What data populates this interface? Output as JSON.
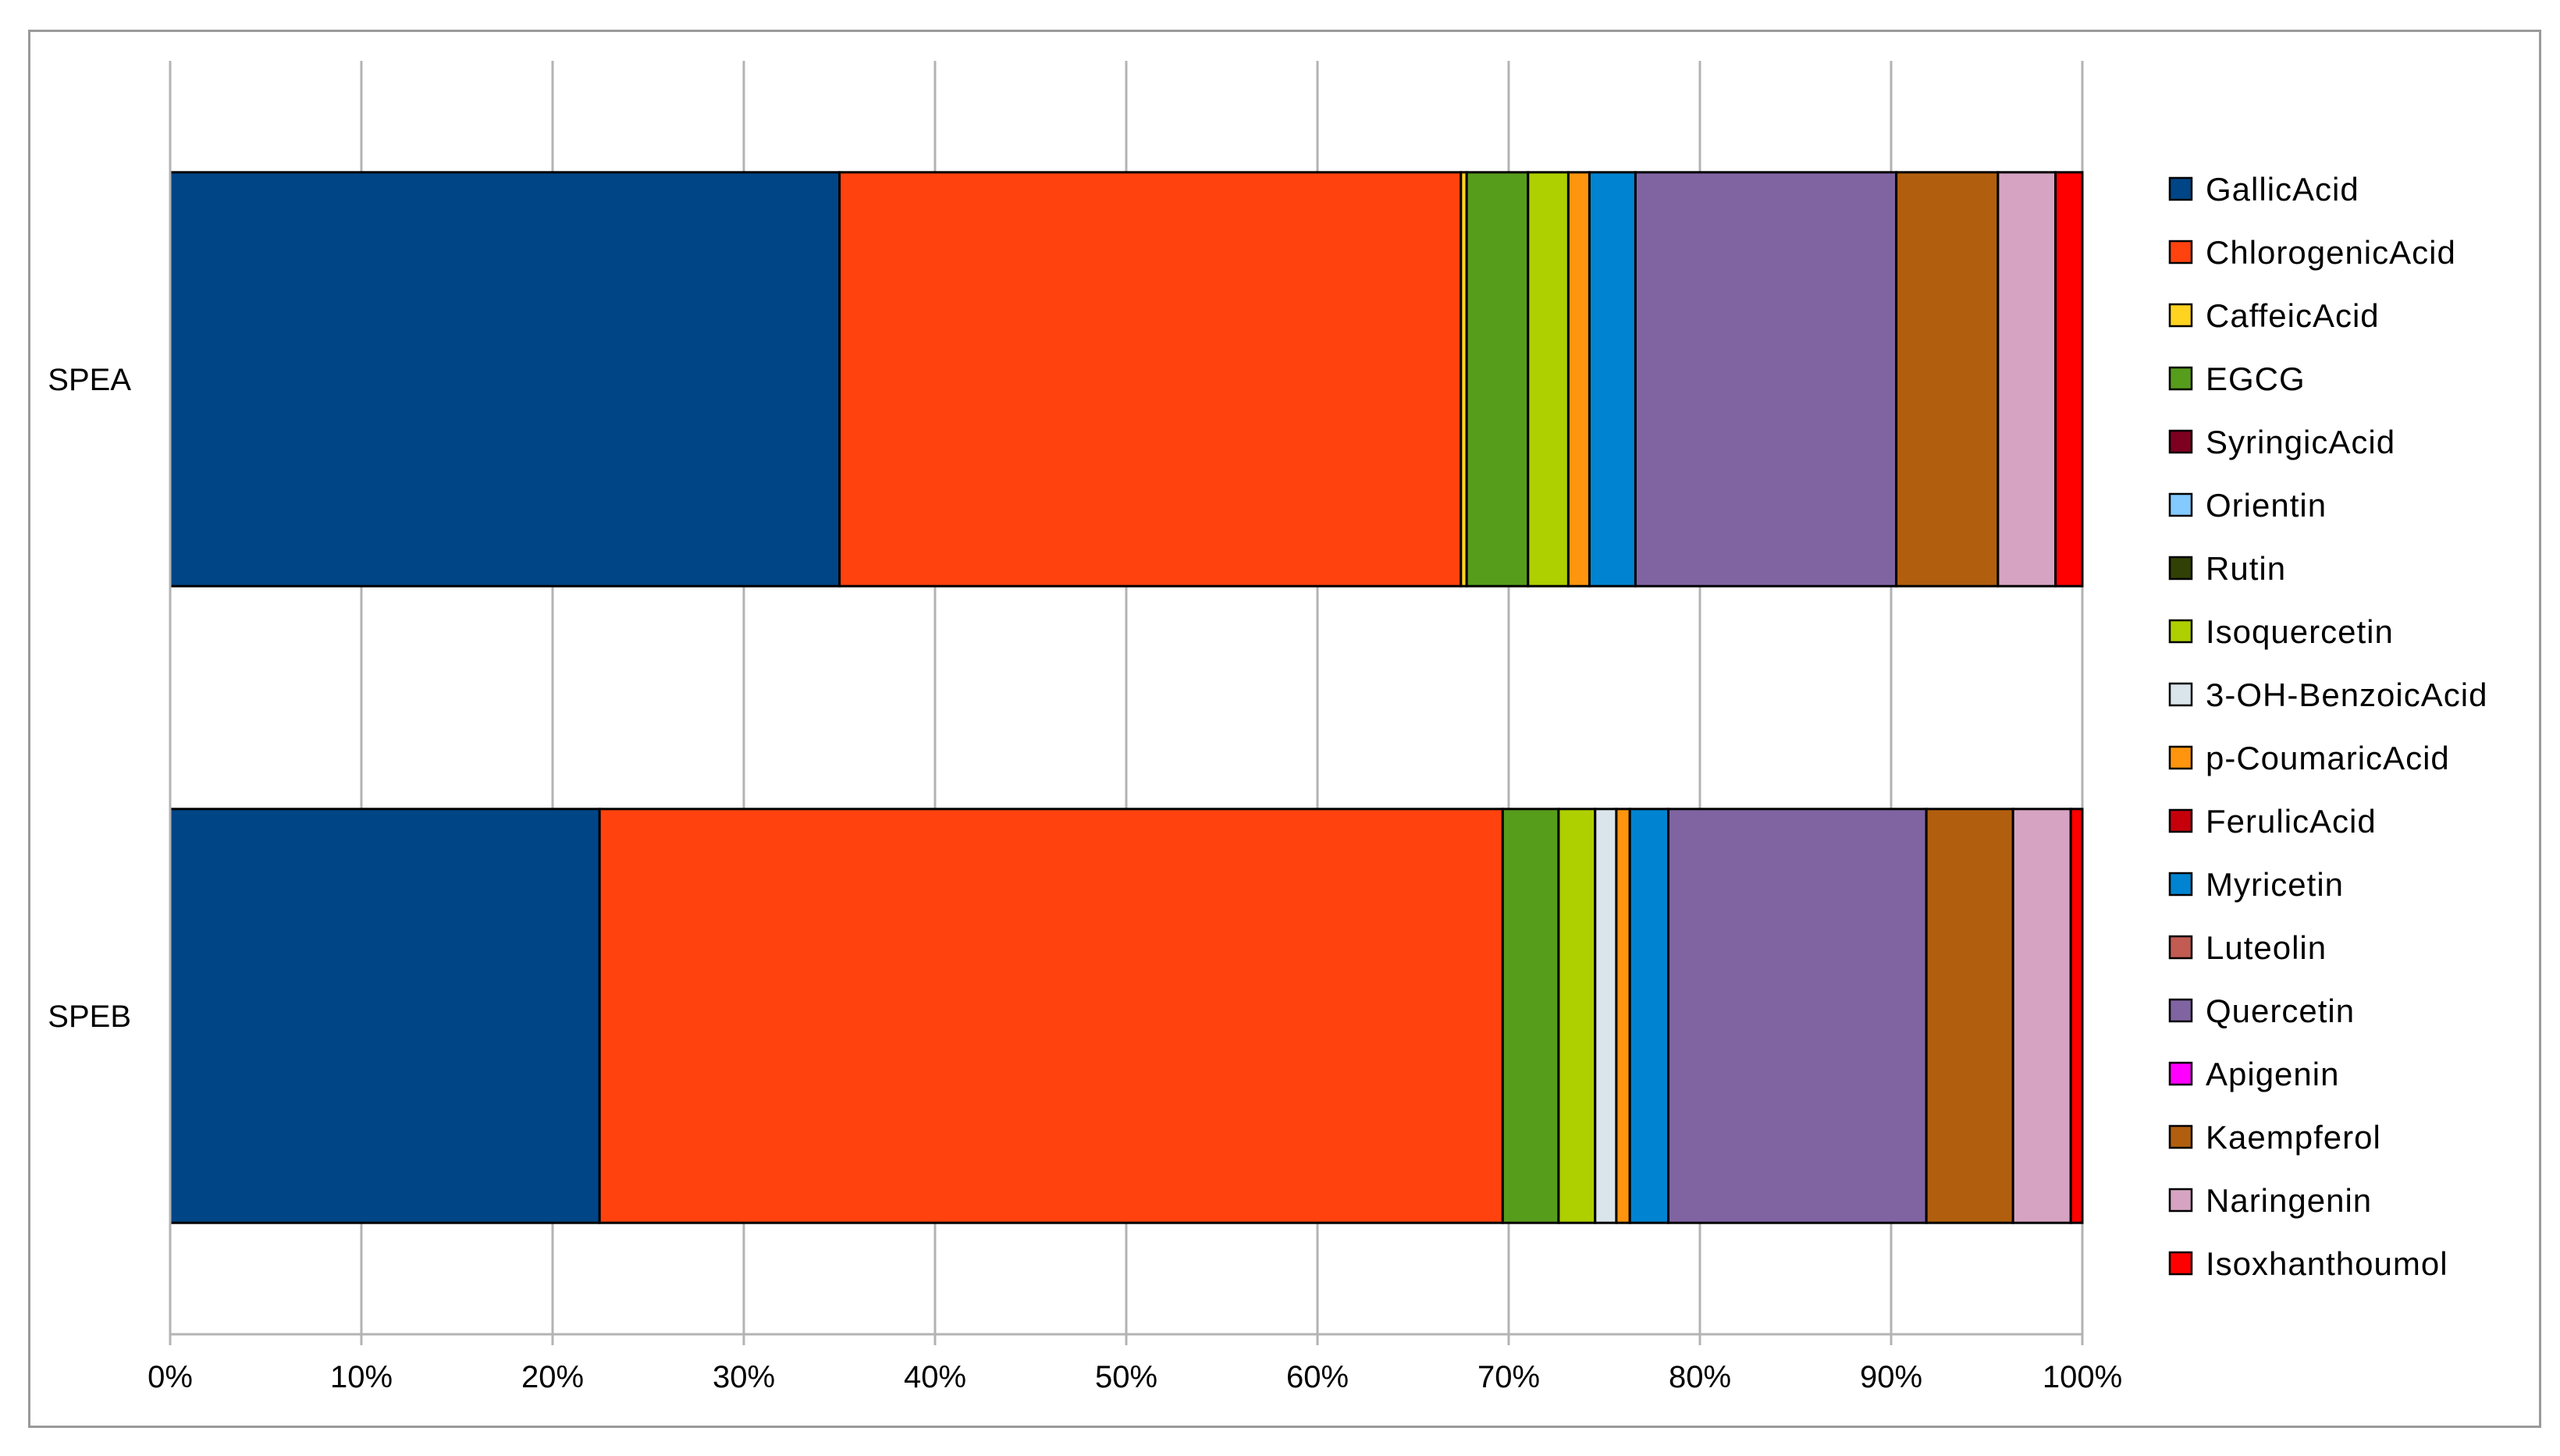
{
  "chart_data": {
    "type": "bar",
    "orientation": "horizontal",
    "stacked": "percent",
    "categories": [
      "SPEA",
      "SPEB"
    ],
    "xlim": [
      0,
      100
    ],
    "xticks": [
      "0%",
      "10%",
      "20%",
      "30%",
      "40%",
      "50%",
      "60%",
      "70%",
      "80%",
      "90%",
      "100%"
    ],
    "grid": true,
    "legend_position": "right",
    "series": [
      {
        "name": "GallicAcid",
        "color": "#004586",
        "values": [
          34.9,
          22.3
        ]
      },
      {
        "name": "ChlorogenicAcid",
        "color": "#ff420e",
        "values": [
          32.4,
          46.9
        ]
      },
      {
        "name": "CaffeicAcid",
        "color": "#ffd320",
        "values": [
          0.3,
          0.0
        ]
      },
      {
        "name": "EGCG",
        "color": "#579d1c",
        "values": [
          3.2,
          2.9
        ]
      },
      {
        "name": "SyringicAcid",
        "color": "#7e0021",
        "values": [
          0.0,
          0.0
        ]
      },
      {
        "name": "Orientin",
        "color": "#83caff",
        "values": [
          0.0,
          0.0
        ]
      },
      {
        "name": "Rutin",
        "color": "#314004",
        "values": [
          0.0,
          0.0
        ]
      },
      {
        "name": "Isoquercetin",
        "color": "#aecf00",
        "values": [
          2.1,
          1.9
        ]
      },
      {
        "name": "3-OH-BenzoicAcid",
        "color": "#d9e4eb",
        "values": [
          0.0,
          1.1
        ]
      },
      {
        "name": "p-CoumaricAcid",
        "color": "#ff950e",
        "values": [
          1.1,
          0.7
        ]
      },
      {
        "name": "FerulicAcid",
        "color": "#c5000b",
        "values": [
          0.0,
          0.0
        ]
      },
      {
        "name": "Myricetin",
        "color": "#0084d1",
        "values": [
          2.4,
          2.0
        ]
      },
      {
        "name": "Luteolin",
        "color": "#c25b52",
        "values": [
          0.0,
          0.0
        ]
      },
      {
        "name": "Quercetin",
        "color": "#8064a2",
        "values": [
          13.6,
          13.4
        ]
      },
      {
        "name": "Apigenin",
        "color": "#ff00ff",
        "values": [
          0.0,
          0.0
        ]
      },
      {
        "name": "Kaempferol",
        "color": "#b15f0e",
        "values": [
          5.3,
          4.5
        ]
      },
      {
        "name": "Naringenin",
        "color": "#d6a4c2",
        "values": [
          3.0,
          3.0
        ]
      },
      {
        "name": "Isoxhanthoumol",
        "color": "#ff0000",
        "values": [
          1.4,
          0.6
        ]
      }
    ]
  }
}
